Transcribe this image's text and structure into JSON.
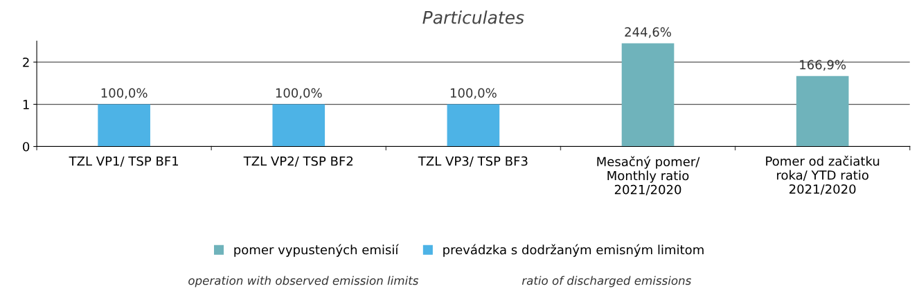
{
  "chart_data": {
    "type": "bar",
    "title": "Particulates",
    "categories": [
      "TZL VP1/ TSP BF1",
      "TZL VP2/ TSP BF2",
      "TZL VP3/ TSP BF3",
      "Mesačný pomer/\nMonthly ratio\n2021/2020",
      "Pomer od začiatku\nroka/ YTD ratio\n2021/2020"
    ],
    "series": [
      {
        "name": "pomer vypustených emisií",
        "color": "#6fb3bb",
        "values": [
          null,
          null,
          null,
          2.446,
          1.669
        ],
        "value_labels": [
          null,
          null,
          null,
          "244,6%",
          "166,9%"
        ]
      },
      {
        "name": "prevádzka s dodržaným emisným limitom",
        "color": "#4db3e6",
        "values": [
          1,
          1,
          1,
          null,
          null
        ],
        "value_labels": [
          "100,0%",
          "100,0%",
          "100,0%",
          null,
          null
        ]
      }
    ],
    "ylim": [
      0,
      2.5
    ],
    "yticks": [
      0,
      1,
      2
    ],
    "grid": "y",
    "legend": "bottom",
    "annotations": [
      "operation with observed emission limits",
      "ratio of discharged emissions"
    ]
  }
}
